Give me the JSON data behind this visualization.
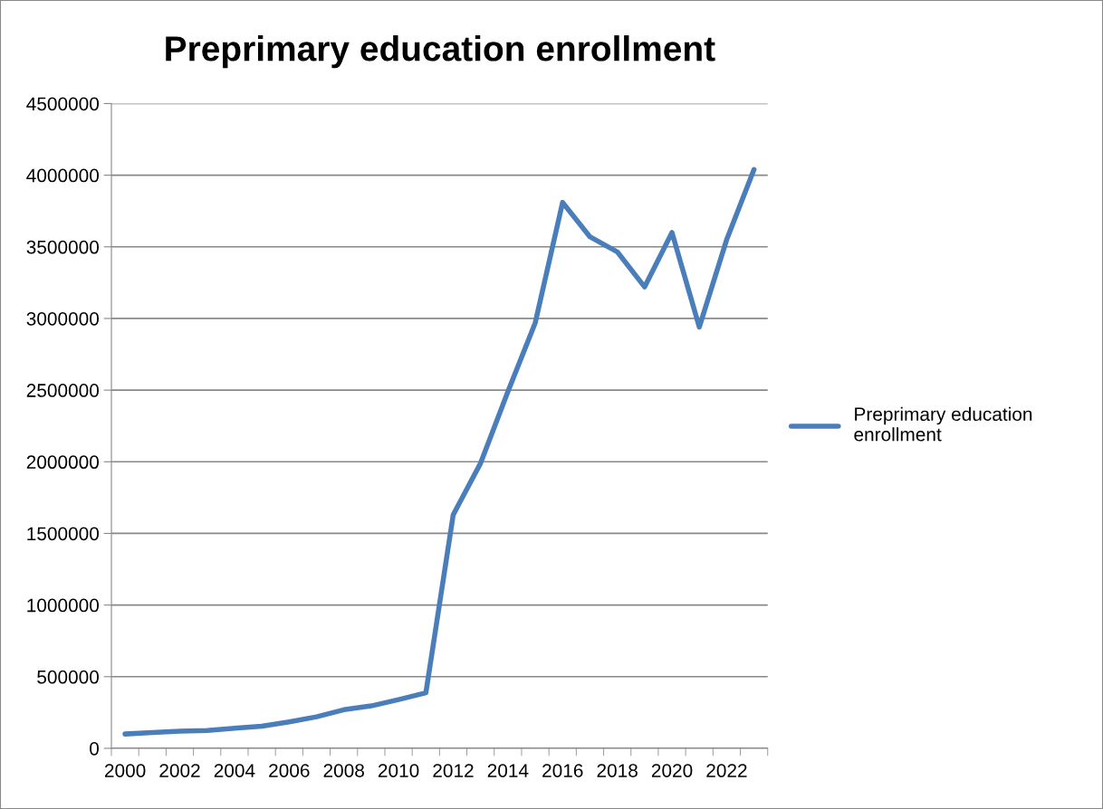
{
  "chart_data": {
    "type": "line",
    "title": "Preprimary education enrollment",
    "categories": [
      "2000",
      null,
      "2002",
      null,
      "2004",
      null,
      "2006",
      null,
      "2008",
      null,
      "2010",
      null,
      "2012",
      null,
      "2014",
      null,
      "2016",
      null,
      "2018",
      null,
      "2020",
      null,
      "2022",
      null
    ],
    "series": [
      {
        "name": "Preprimary education enrollment",
        "color": "#4a7ebb",
        "values": [
          100000,
          110000,
          120000,
          125000,
          140000,
          154000,
          185000,
          220000,
          269000,
          296000,
          340000,
          387000,
          1630000,
          1990000,
          2490000,
          2970000,
          3810000,
          3570000,
          3465000,
          3220000,
          3600000,
          2940000,
          3550000,
          4040000
        ]
      }
    ],
    "ylim": [
      0,
      4500000
    ],
    "yticks": [
      0,
      500000,
      1000000,
      1500000,
      2000000,
      2500000,
      3000000,
      3500000,
      4000000,
      4500000
    ],
    "grid": "y",
    "legend": "right",
    "marker": "none",
    "line_style": "solid"
  }
}
